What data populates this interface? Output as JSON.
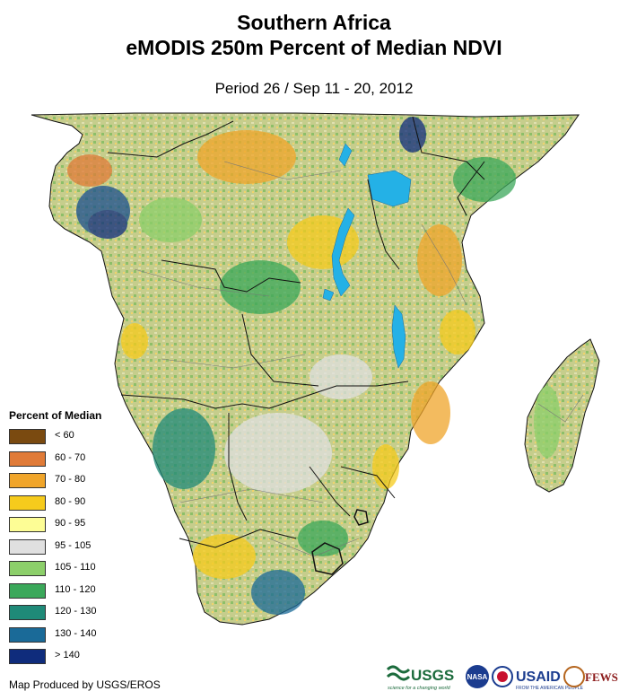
{
  "map": {
    "title_line1": "Southern Africa",
    "title_line2": "eMODIS 250m Percent of Median NDVI",
    "period": "Period 26 / Sep 11 - 20, 2012",
    "credit": "Map Produced by USGS/EROS",
    "colors": {
      "land_base": "#c9cf8e",
      "water": "#24b1e6",
      "border": "#111111",
      "admin_border": "#777777"
    }
  },
  "legend": {
    "title": "Percent of Median",
    "items": [
      {
        "label": "< 60",
        "color": "#7a4a10"
      },
      {
        "label": "60 - 70",
        "color": "#e07b38"
      },
      {
        "label": "70 - 80",
        "color": "#f0a52a"
      },
      {
        "label": "80 - 90",
        "color": "#f6cb1c"
      },
      {
        "label": "90 - 95",
        "color": "#fdfd95"
      },
      {
        "label": "95 - 105",
        "color": "#e0e0e0"
      },
      {
        "label": "105 - 110",
        "color": "#8ccf6a"
      },
      {
        "label": "110 - 120",
        "color": "#3ba85a"
      },
      {
        "label": "120 - 130",
        "color": "#1f8a78"
      },
      {
        "label": "130 - 140",
        "color": "#1a6a98"
      },
      {
        "label": "> 140",
        "color": "#0f2c7c"
      }
    ]
  },
  "logos": {
    "usgs": "USGS",
    "usgs_tagline": "science for a changing world",
    "nasa": "NASA",
    "usaid": "USAID",
    "usaid_tagline": "FROM THE AMERICAN PEOPLE",
    "fews": "FEWS NET"
  }
}
